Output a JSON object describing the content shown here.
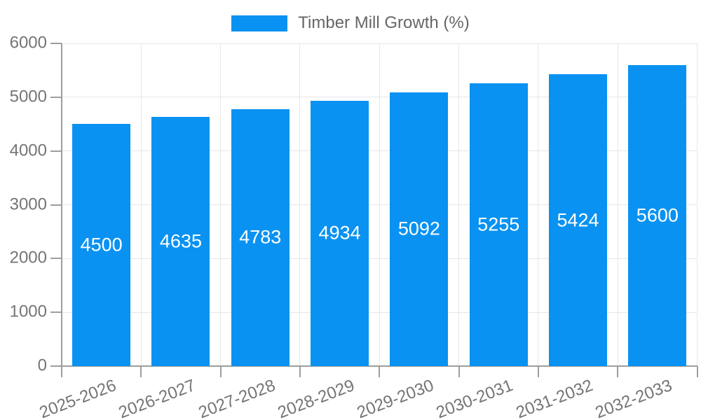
{
  "legend": {
    "label": "Timber Mill Growth (%)"
  },
  "colors": {
    "background": "#ffffff",
    "bar": "#0992f2",
    "bar_label": "#ffffff",
    "axis": "#9e9e9e",
    "grid": "#e6e6e6",
    "tick_text": "#757575",
    "legend_text": "#666666"
  },
  "chart_data": {
    "type": "bar",
    "title": "Timber Mill Growth (%)",
    "series_name": "Timber Mill Growth (%)",
    "categories": [
      "2025-2026",
      "2026-2027",
      "2027-2028",
      "2028-2029",
      "2029-2030",
      "2030-2031",
      "2031-2032",
      "2032-2033"
    ],
    "values": [
      4500,
      4635,
      4783,
      4934,
      5092,
      5255,
      5424,
      5600
    ],
    "bar_value_labels": [
      "4500",
      "4635",
      "4783",
      "4934",
      "5092",
      "5255",
      "5424",
      "5600"
    ],
    "xlabel": "",
    "ylabel": "",
    "ylim": [
      0,
      6000
    ],
    "yticks": [
      0,
      1000,
      2000,
      3000,
      4000,
      5000,
      6000
    ],
    "grid": true,
    "legend_position": "top",
    "x_tick_rotation_deg": -21,
    "bar_labels_inside": true
  }
}
